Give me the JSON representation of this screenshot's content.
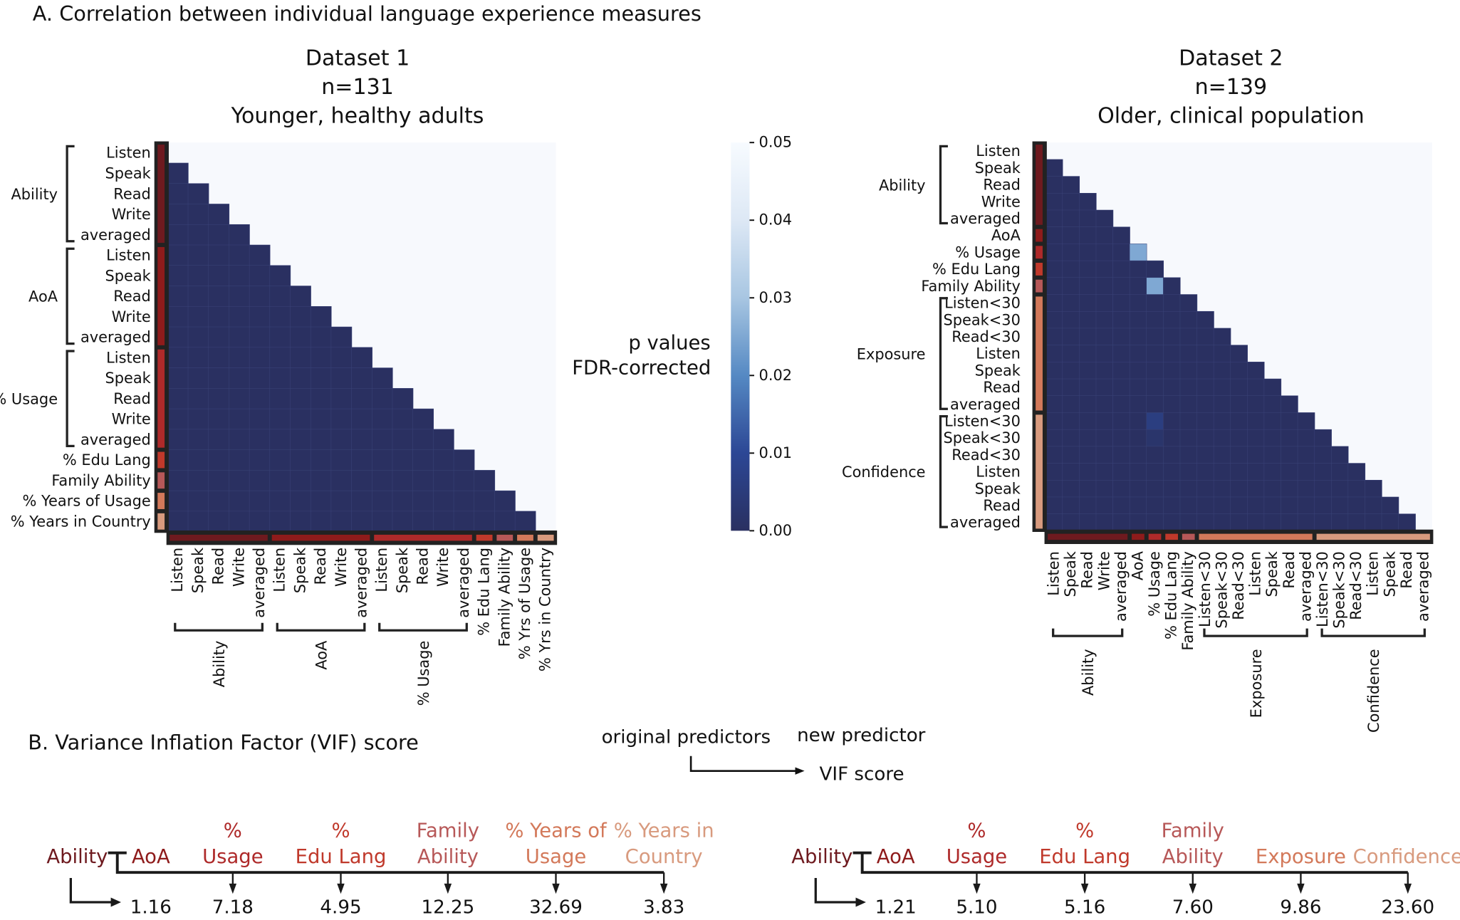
{
  "panel_a_title": "A.  Correlation between individual language experience measures",
  "panel_b_title": "B.  Variance Inflation Factor (VIF) score",
  "colorbar": {
    "label_lines": [
      "p values",
      "FDR-corrected"
    ],
    "ticks": [
      "0.00",
      "0.01",
      "0.02",
      "0.03",
      "0.04",
      "0.05"
    ],
    "range": [
      0,
      0.05
    ],
    "colors": [
      "#2a3061",
      "#2c4795",
      "#5589c3",
      "#a8c6e2",
      "#dde8f5",
      "#f7fbff"
    ]
  },
  "group_colors": {
    "Ability": "#6e1a1f",
    "AoA": "#8e1b1b",
    "% Usage": "#ae2a2a",
    "% Edu Lang": "#c0392b",
    "Family Ability": "#b75858",
    "Exposure": "#d3795a",
    "Confidence": "#d89a7e",
    "% Years of Usage": "#d3795a",
    "% Years in Country": "#d89a7e"
  },
  "chart_data": [
    {
      "type": "heatmap",
      "title_lines": [
        "Dataset 1",
        "n=131",
        "Younger, healthy adults"
      ],
      "mask": "upper triangle incl. diagonal",
      "groups": [
        {
          "name": "Ability",
          "bracket": true,
          "rows": [
            "Listen",
            "Speak",
            "Read",
            "Write",
            "averaged"
          ],
          "cols": [
            "Listen",
            "Speak",
            "Read",
            "Write",
            "averaged"
          ]
        },
        {
          "name": "AoA",
          "bracket": true,
          "rows": [
            "Listen",
            "Speak",
            "Read",
            "Write",
            "averaged"
          ],
          "cols": [
            "Listen",
            "Speak",
            "Read",
            "Write",
            "averaged"
          ]
        },
        {
          "name": "% Usage",
          "bracket": true,
          "rows": [
            "Listen",
            "Speak",
            "Read",
            "Write",
            "averaged"
          ],
          "cols": [
            "Listen",
            "Speak",
            "Read",
            "Write",
            "averaged"
          ]
        },
        {
          "name": "% Edu Lang",
          "bracket": false,
          "rows": [
            "% Edu Lang"
          ],
          "cols": [
            "% Edu Lang"
          ]
        },
        {
          "name": "Family Ability",
          "bracket": false,
          "rows": [
            "Family Ability"
          ],
          "cols": [
            "Family Ability"
          ]
        },
        {
          "name": "% Years of Usage",
          "bracket": false,
          "rows": [
            "% Years of Usage"
          ],
          "cols": [
            "% Yrs of Usage"
          ]
        },
        {
          "name": "% Years in Country",
          "bracket": false,
          "rows": [
            "% Years in Country"
          ],
          "cols": [
            "% Yrs in Country"
          ]
        }
      ],
      "p_value_default": 0.0,
      "p_value_exceptions": []
    },
    {
      "type": "heatmap",
      "title_lines": [
        "Dataset 2",
        "n=139",
        "Older, clinical population"
      ],
      "mask": "upper triangle incl. diagonal",
      "groups": [
        {
          "name": "Ability",
          "bracket": true,
          "rows": [
            "Listen",
            "Speak",
            "Read",
            "Write",
            "averaged"
          ],
          "cols": [
            "Listen",
            "Speak",
            "Read",
            "Write",
            "averaged"
          ]
        },
        {
          "name": "AoA",
          "bracket": false,
          "rows": [
            "AoA"
          ],
          "cols": [
            "AoA"
          ]
        },
        {
          "name": "% Usage",
          "bracket": false,
          "rows": [
            "% Usage"
          ],
          "cols": [
            "% Usage"
          ]
        },
        {
          "name": "% Edu Lang",
          "bracket": false,
          "rows": [
            "% Edu Lang"
          ],
          "cols": [
            "% Edu Lang"
          ]
        },
        {
          "name": "Family Ability",
          "bracket": false,
          "rows": [
            "Family Ability"
          ],
          "cols": [
            "Family Ability"
          ]
        },
        {
          "name": "Exposure",
          "bracket": true,
          "rows": [
            "Listen<30",
            "Speak<30",
            "Read<30",
            "Listen",
            "Speak",
            "Read",
            "averaged"
          ],
          "cols": [
            "Listen<30",
            "Speak<30",
            "Read<30",
            "Listen",
            "Speak",
            "Read",
            "averaged"
          ]
        },
        {
          "name": "Confidence",
          "bracket": true,
          "rows": [
            "Listen<30",
            "Speak<30",
            "Read<30",
            "Listen",
            "Speak",
            "Read",
            "averaged"
          ],
          "cols": [
            "Listen<30",
            "Speak<30",
            "Read<30",
            "Listen",
            "Speak",
            "Read",
            "averaged"
          ]
        }
      ],
      "p_value_default": 0.0,
      "p_value_exceptions": [
        {
          "row": "% Usage",
          "col": "AoA",
          "p": 0.025
        },
        {
          "row": "Family Ability",
          "col": "% Usage",
          "p": 0.025
        },
        {
          "row": "Confidence Listen<30",
          "col": "% Usage",
          "p": 0.006
        },
        {
          "row": "Confidence Speak<30",
          "col": "% Usage",
          "p": 0.002
        }
      ]
    }
  ],
  "vif_legend": {
    "original": "original predictors",
    "new": "new predictor",
    "score": "VIF score"
  },
  "vif": [
    {
      "new_predictor": "Ability",
      "new_score": "1.16",
      "predictors": [
        {
          "lines": [
            "",
            "AoA"
          ],
          "group": "AoA",
          "score": "1.16"
        },
        {
          "lines": [
            "%",
            "Usage"
          ],
          "group": "% Usage",
          "score": "7.18"
        },
        {
          "lines": [
            "%",
            "Edu Lang"
          ],
          "group": "% Edu Lang",
          "score": "4.95"
        },
        {
          "lines": [
            "Family",
            "Ability"
          ],
          "group": "Family Ability",
          "score": "12.25"
        },
        {
          "lines": [
            "% Years of",
            "Usage"
          ],
          "group": "% Years of Usage",
          "score": "32.69"
        },
        {
          "lines": [
            "% Years in",
            "Country"
          ],
          "group": "% Years in Country",
          "score": "3.83"
        }
      ]
    },
    {
      "new_predictor": "Ability",
      "new_score": "1.21",
      "predictors": [
        {
          "lines": [
            "",
            "AoA"
          ],
          "group": "AoA",
          "score": "1.21"
        },
        {
          "lines": [
            "%",
            "Usage"
          ],
          "group": "% Usage",
          "score": "5.10"
        },
        {
          "lines": [
            "%",
            "Edu Lang"
          ],
          "group": "% Edu Lang",
          "score": "5.16"
        },
        {
          "lines": [
            "Family",
            "Ability"
          ],
          "group": "Family Ability",
          "score": "7.60"
        },
        {
          "lines": [
            "",
            "Exposure"
          ],
          "group": "Exposure",
          "score": "9.86"
        },
        {
          "lines": [
            "",
            "Confidence"
          ],
          "group": "Confidence",
          "score": "23.60"
        }
      ]
    }
  ]
}
